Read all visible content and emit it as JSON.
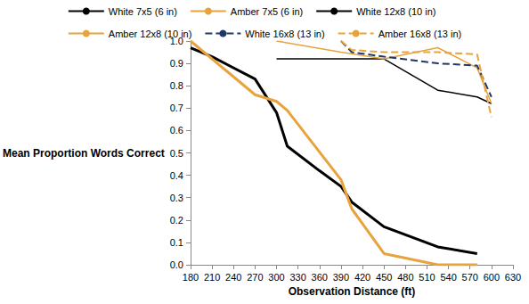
{
  "chart_data": {
    "type": "line",
    "x_label": "Observation Distance (ft)",
    "y_label": "Mean Proportion Words Correct",
    "xlim": [
      180,
      630
    ],
    "xticks": [
      180,
      210,
      240,
      270,
      300,
      330,
      360,
      390,
      420,
      450,
      480,
      510,
      540,
      570,
      600,
      630
    ],
    "ylim": [
      0,
      1
    ],
    "yticks": [
      {
        "value": 0,
        "label": "0.0"
      },
      {
        "value": 0.1,
        "label": "0.1"
      },
      {
        "value": 0.2,
        "label": "0.2"
      },
      {
        "value": 0.3,
        "label": "0.3"
      },
      {
        "value": 0.4,
        "label": "0.4"
      },
      {
        "value": 0.5,
        "label": "0.5"
      },
      {
        "value": 0.6,
        "label": "0.6"
      },
      {
        "value": 0.7,
        "label": "0.7"
      },
      {
        "value": 0.8,
        "label": "0.8"
      },
      {
        "value": 0.9,
        "label": "0.9"
      },
      {
        "value": 1,
        "label": "1.0"
      }
    ],
    "grid": false,
    "legend": "top",
    "series": [
      {
        "name": "White 7x5 (6 in)",
        "color": "#000000",
        "line_style": "solid",
        "x": [
          180,
          210,
          270,
          300,
          315,
          360,
          390,
          405,
          450,
          525,
          580
        ],
        "values": [
          0.97,
          0.93,
          0.83,
          0.68,
          0.53,
          0.42,
          0.35,
          0.28,
          0.17,
          0.08,
          0.05
        ]
      },
      {
        "name": "Amber 7x5 (6 in)",
        "color": "#e8a33d",
        "line_style": "solid",
        "x": [
          180,
          210,
          270,
          300,
          315,
          390,
          405,
          450,
          525,
          580
        ],
        "values": [
          1.0,
          0.92,
          0.76,
          0.73,
          0.69,
          0.38,
          0.25,
          0.05,
          0.0,
          0.0
        ]
      },
      {
        "name": "White 12x8 (10 in)",
        "color": "#000000",
        "line_style": "solid",
        "x": [
          300,
          390,
          450,
          525,
          580,
          600
        ],
        "values": [
          0.92,
          0.92,
          0.92,
          0.78,
          0.75,
          0.72
        ]
      },
      {
        "name": "Amber 12x8 (10 in)",
        "color": "#e8a33d",
        "line_style": "solid",
        "x": [
          300,
          390,
          450,
          525,
          580,
          600
        ],
        "values": [
          1.0,
          0.95,
          0.92,
          0.97,
          0.88,
          0.72
        ]
      },
      {
        "name": "White 16x8 (13 in)",
        "color": "#1f3864",
        "line_style": "dashed",
        "x": [
          390,
          405,
          450,
          525,
          580,
          600
        ],
        "values": [
          1.0,
          0.95,
          0.93,
          0.9,
          0.89,
          0.75
        ]
      },
      {
        "name": "Amber 16x8 (13 in)",
        "color": "#e8a33d",
        "line_style": "dashed",
        "x": [
          390,
          405,
          450,
          525,
          580,
          600
        ],
        "values": [
          1.0,
          0.96,
          0.95,
          0.95,
          0.94,
          0.66
        ]
      }
    ]
  }
}
